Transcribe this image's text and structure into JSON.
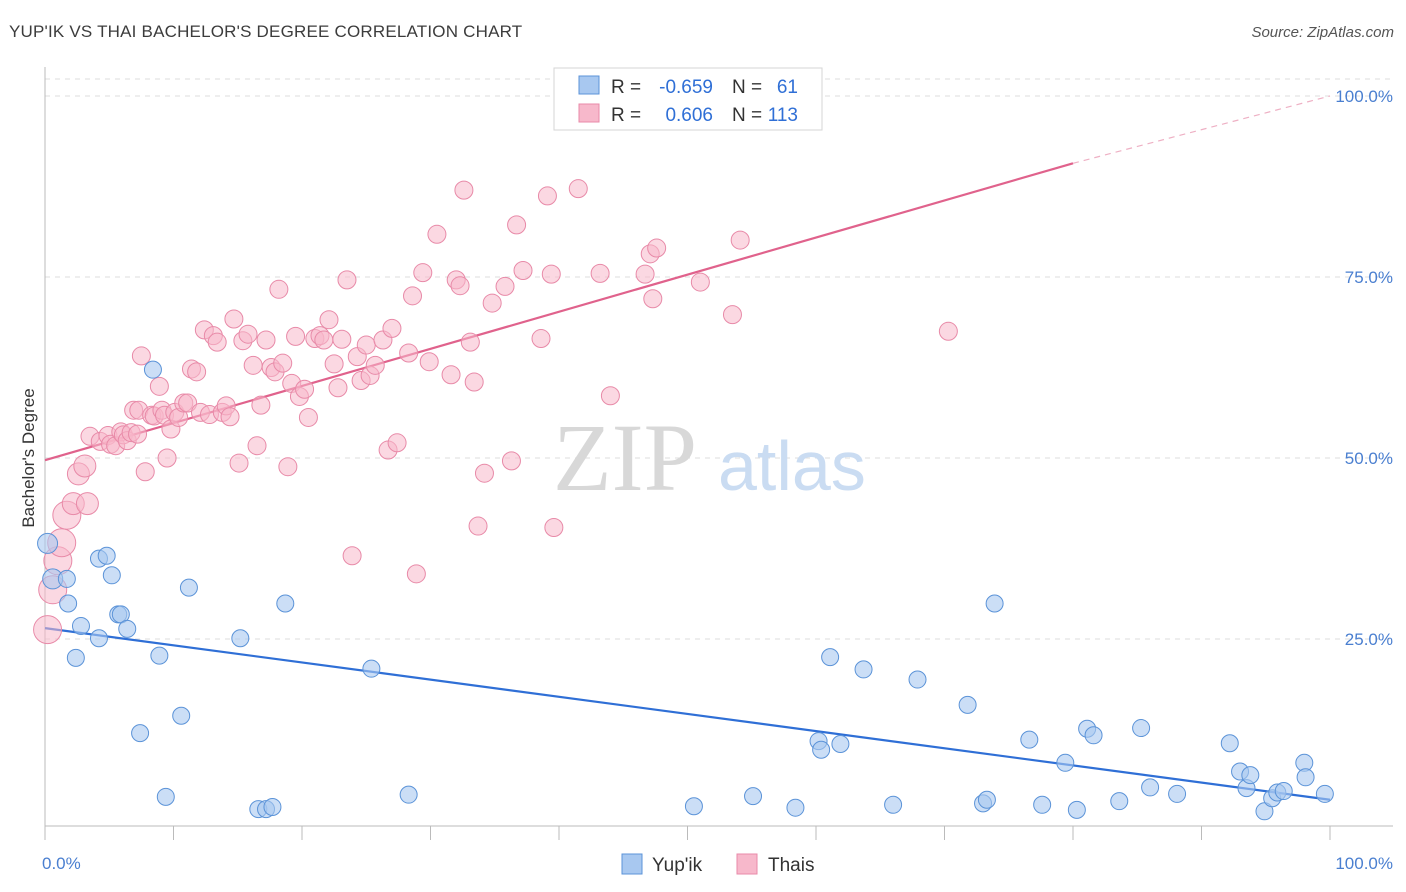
{
  "title": "YUP'IK VS THAI BACHELOR'S DEGREE CORRELATION CHART",
  "source": "Source: ZipAtlas.com",
  "watermark": {
    "part1": "ZIP",
    "part2": "atlas"
  },
  "colors": {
    "blue_fill": "#a8c8f0",
    "blue_stroke": "#5b93d8",
    "blue_line": "#2f6fd6",
    "pink_fill": "#f7b8cb",
    "pink_stroke": "#e88aa8",
    "pink_line": "#e0628c",
    "grid": "#dddddd",
    "label_blue": "#4a7fd0"
  },
  "legend": {
    "rows": [
      {
        "r_label": "R =",
        "r_value": "-0.659",
        "n_label": "N =",
        "n_value": "61"
      },
      {
        "r_label": "R =",
        "r_value": "0.606",
        "n_label": "N =",
        "n_value": "113"
      }
    ]
  },
  "bottom_legend": [
    "Yup'ik",
    "Thais"
  ],
  "chart_data": {
    "type": "scatter",
    "title": "YUP'IK VS THAI BACHELOR'S DEGREE CORRELATION CHART",
    "xlabel": "",
    "ylabel": "Bachelor's Degree",
    "xlim": [
      0,
      100
    ],
    "ylim": [
      0,
      100
    ],
    "x_tick_labels": [
      "0.0%",
      "100.0%"
    ],
    "y_tick_labels": [
      "25.0%",
      "50.0%",
      "75.0%",
      "100.0%"
    ],
    "y_ticks": [
      25,
      50,
      75,
      100
    ],
    "grid": true,
    "legend_position": "top-center",
    "series": [
      {
        "name": "Yup'ik",
        "color": "#5b93d8",
        "trend": {
          "x0": 0,
          "y0": 26.5,
          "x1": 100,
          "y1": 2.8
        },
        "points": [
          [
            0.2,
            38.2
          ],
          [
            0.6,
            33.3
          ],
          [
            1.7,
            33.3
          ],
          [
            1.8,
            29.9
          ],
          [
            2.8,
            26.8
          ],
          [
            2.4,
            22.4
          ],
          [
            4.2,
            36.1
          ],
          [
            4.8,
            36.5
          ],
          [
            4.2,
            25.1
          ],
          [
            5.2,
            33.8
          ],
          [
            5.7,
            28.4
          ],
          [
            5.9,
            28.4
          ],
          [
            6.4,
            26.4
          ],
          [
            7.4,
            12.0
          ],
          [
            8.4,
            62.2
          ],
          [
            8.9,
            22.7
          ],
          [
            9.4,
            3.2
          ],
          [
            10.6,
            14.4
          ],
          [
            11.2,
            32.1
          ],
          [
            15.2,
            25.1
          ],
          [
            16.6,
            1.5
          ],
          [
            17.2,
            1.5
          ],
          [
            17.7,
            1.8
          ],
          [
            18.7,
            29.9
          ],
          [
            25.4,
            20.9
          ],
          [
            28.3,
            3.5
          ],
          [
            50.5,
            1.9
          ],
          [
            55.1,
            3.3
          ],
          [
            58.4,
            1.7
          ],
          [
            60.2,
            10.9
          ],
          [
            60.4,
            9.7
          ],
          [
            61.1,
            22.5
          ],
          [
            61.9,
            10.5
          ],
          [
            63.7,
            20.8
          ],
          [
            66.0,
            2.1
          ],
          [
            67.9,
            19.4
          ],
          [
            71.8,
            15.9
          ],
          [
            73.0,
            2.3
          ],
          [
            73.3,
            2.8
          ],
          [
            73.9,
            29.9
          ],
          [
            76.6,
            11.1
          ],
          [
            77.6,
            2.1
          ],
          [
            79.4,
            7.9
          ],
          [
            80.3,
            1.4
          ],
          [
            81.1,
            12.6
          ],
          [
            81.6,
            11.7
          ],
          [
            83.6,
            2.6
          ],
          [
            85.3,
            12.7
          ],
          [
            86.0,
            4.5
          ],
          [
            88.1,
            3.6
          ],
          [
            92.2,
            10.6
          ],
          [
            93.0,
            6.7
          ],
          [
            93.5,
            4.4
          ],
          [
            93.8,
            6.2
          ],
          [
            94.9,
            1.2
          ],
          [
            95.5,
            3.0
          ],
          [
            95.9,
            3.8
          ],
          [
            96.4,
            4.0
          ],
          [
            98.0,
            7.9
          ],
          [
            98.1,
            5.9
          ],
          [
            99.6,
            3.6
          ]
        ]
      },
      {
        "name": "Thais",
        "color": "#e88aa8",
        "trend": {
          "x0": 0,
          "y0": 49.7,
          "x1": 80,
          "y1": 90.7,
          "dash_to": {
            "x": 100,
            "y": 100
          }
        },
        "points": [
          [
            0.2,
            26.3
          ],
          [
            0.6,
            31.8
          ],
          [
            1.0,
            35.8
          ],
          [
            1.3,
            38.3
          ],
          [
            1.7,
            42.1
          ],
          [
            2.2,
            43.7
          ],
          [
            2.6,
            47.8
          ],
          [
            3.1,
            48.9
          ],
          [
            3.3,
            43.7
          ],
          [
            3.5,
            53.0
          ],
          [
            4.3,
            52.3
          ],
          [
            4.9,
            53.1
          ],
          [
            5.1,
            51.9
          ],
          [
            5.5,
            51.7
          ],
          [
            5.9,
            53.6
          ],
          [
            6.1,
            53.2
          ],
          [
            6.4,
            52.4
          ],
          [
            6.7,
            53.5
          ],
          [
            6.9,
            56.6
          ],
          [
            7.2,
            53.3
          ],
          [
            7.3,
            56.6
          ],
          [
            7.5,
            64.1
          ],
          [
            7.8,
            48.1
          ],
          [
            8.3,
            55.9
          ],
          [
            8.5,
            55.8
          ],
          [
            8.9,
            59.9
          ],
          [
            9.1,
            56.6
          ],
          [
            9.3,
            55.9
          ],
          [
            9.5,
            50.0
          ],
          [
            9.8,
            54.0
          ],
          [
            10.1,
            56.3
          ],
          [
            10.4,
            55.6
          ],
          [
            10.8,
            57.6
          ],
          [
            11.1,
            57.6
          ],
          [
            11.4,
            62.3
          ],
          [
            11.8,
            61.9
          ],
          [
            12.1,
            56.3
          ],
          [
            12.4,
            67.7
          ],
          [
            12.8,
            56.0
          ],
          [
            13.1,
            66.9
          ],
          [
            13.4,
            66.0
          ],
          [
            13.8,
            56.3
          ],
          [
            14.1,
            57.2
          ],
          [
            14.4,
            55.7
          ],
          [
            14.7,
            69.2
          ],
          [
            15.1,
            49.3
          ],
          [
            15.4,
            66.2
          ],
          [
            15.8,
            67.1
          ],
          [
            16.2,
            62.8
          ],
          [
            16.5,
            51.7
          ],
          [
            16.8,
            57.3
          ],
          [
            17.2,
            66.3
          ],
          [
            17.6,
            62.5
          ],
          [
            17.9,
            61.9
          ],
          [
            18.2,
            73.3
          ],
          [
            18.5,
            63.1
          ],
          [
            18.9,
            48.8
          ],
          [
            19.2,
            60.3
          ],
          [
            19.5,
            66.8
          ],
          [
            19.8,
            58.5
          ],
          [
            20.2,
            59.5
          ],
          [
            20.5,
            55.6
          ],
          [
            21.0,
            66.5
          ],
          [
            21.4,
            66.9
          ],
          [
            21.7,
            66.3
          ],
          [
            22.1,
            69.1
          ],
          [
            22.5,
            63.0
          ],
          [
            22.8,
            59.7
          ],
          [
            23.1,
            66.4
          ],
          [
            23.5,
            74.6
          ],
          [
            23.9,
            36.5
          ],
          [
            24.3,
            64.0
          ],
          [
            24.6,
            60.7
          ],
          [
            25.0,
            65.6
          ],
          [
            25.3,
            61.4
          ],
          [
            25.7,
            62.8
          ],
          [
            26.3,
            66.3
          ],
          [
            26.7,
            51.1
          ],
          [
            27.0,
            67.9
          ],
          [
            27.4,
            52.1
          ],
          [
            28.3,
            64.5
          ],
          [
            28.6,
            72.4
          ],
          [
            28.9,
            34.0
          ],
          [
            29.4,
            75.6
          ],
          [
            29.9,
            63.3
          ],
          [
            30.5,
            80.9
          ],
          [
            31.6,
            61.5
          ],
          [
            32.0,
            74.6
          ],
          [
            32.3,
            73.8
          ],
          [
            32.6,
            87.0
          ],
          [
            33.1,
            66.0
          ],
          [
            33.4,
            60.5
          ],
          [
            33.7,
            40.6
          ],
          [
            34.2,
            47.9
          ],
          [
            34.8,
            71.4
          ],
          [
            35.8,
            73.7
          ],
          [
            36.3,
            49.6
          ],
          [
            36.7,
            82.2
          ],
          [
            37.2,
            75.9
          ],
          [
            38.6,
            66.5
          ],
          [
            39.1,
            86.2
          ],
          [
            39.4,
            75.4
          ],
          [
            39.6,
            40.4
          ],
          [
            41.5,
            87.2
          ],
          [
            43.2,
            75.5
          ],
          [
            44.0,
            58.6
          ],
          [
            46.7,
            75.4
          ],
          [
            47.1,
            78.2
          ],
          [
            47.3,
            72.0
          ],
          [
            47.6,
            79.0
          ],
          [
            51.0,
            74.3
          ],
          [
            53.5,
            69.8
          ],
          [
            54.1,
            80.1
          ],
          [
            70.3,
            67.5
          ]
        ]
      }
    ]
  }
}
